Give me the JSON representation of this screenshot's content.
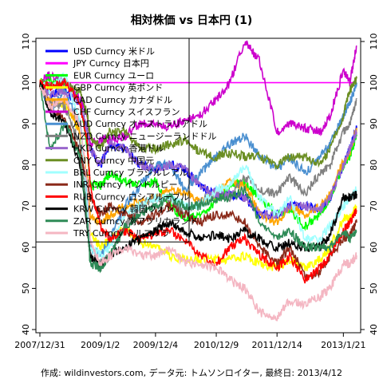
{
  "chart_data": {
    "type": "line",
    "title": "相対株価 vs 日本円 (1)",
    "caption": "作成: wildinvestors.com, データ元: トムソンロイター, 最終日: 2013/4/12",
    "x_ticks": [
      "2007/12/31",
      "2009/1/2",
      "2009/12/4",
      "2010/12/9",
      "2011/12/14",
      "2013/1/21"
    ],
    "ylim": [
      40,
      110
    ],
    "y_ticks": [
      40,
      50,
      60,
      70,
      80,
      90,
      100,
      110
    ],
    "y_ticks_both_sides": true,
    "grid": false,
    "legend_position": "top-left",
    "x": [
      "2007/12/31",
      "2008/3/1",
      "2008/6/1",
      "2008/9/1",
      "2008/10/15",
      "2008/11/1",
      "2009/1/2",
      "2009/3/1",
      "2009/6/1",
      "2009/9/1",
      "2009/12/4",
      "2010/3/1",
      "2010/6/1",
      "2010/9/1",
      "2010/12/9",
      "2011/3/1",
      "2011/6/1",
      "2011/9/1",
      "2011/12/14",
      "2012/3/1",
      "2012/6/1",
      "2012/9/1",
      "2012/11/1",
      "2013/1/21",
      "2013/3/1",
      "2013/4/12"
    ],
    "series": [
      {
        "name": "USD Curncy 米ドル",
        "color": "#0000ff",
        "values": [
          100,
          97,
          98,
          95,
          88,
          84,
          80,
          85,
          84,
          80,
          79,
          80,
          79,
          75,
          73,
          73,
          72,
          68,
          68,
          70,
          70,
          69,
          72,
          80,
          84,
          89
        ]
      },
      {
        "name": "JPY Curncy 日本円",
        "color": "#ff00ff",
        "values": [
          100,
          100,
          100,
          100,
          100,
          100,
          100,
          100,
          100,
          100,
          100,
          100,
          100,
          100,
          100,
          100,
          100,
          100,
          100,
          100,
          100,
          100,
          100,
          100,
          100,
          100
        ]
      },
      {
        "name": "EUR Curncy ユーロ",
        "color": "#00ff00",
        "values": [
          100,
          101,
          100,
          96,
          84,
          75,
          75,
          78,
          76,
          75,
          76,
          70,
          67,
          68,
          71,
          75,
          76,
          72,
          68,
          69,
          65,
          68,
          72,
          80,
          82,
          87
        ]
      },
      {
        "name": "GBP Curncy 英ポンド",
        "color": "#ffff00",
        "values": [
          100,
          95,
          95,
          88,
          75,
          63,
          60,
          62,
          65,
          61,
          60,
          58,
          57,
          57,
          57,
          57,
          58,
          56,
          55,
          57,
          55,
          57,
          60,
          67,
          67,
          70
        ]
      },
      {
        "name": "CAD Curncy カナダドル",
        "color": "#ffa500",
        "values": [
          100,
          95,
          96,
          88,
          77,
          68,
          66,
          68,
          70,
          71,
          72,
          74,
          73,
          71,
          73,
          76,
          75,
          68,
          66,
          70,
          68,
          70,
          73,
          81,
          83,
          89
        ]
      },
      {
        "name": "CHF Curncy スイスフラン",
        "color": "#cc00cc",
        "values": [
          100,
          102,
          100,
          96,
          92,
          85,
          86,
          86,
          87,
          90,
          90,
          89,
          91,
          92,
          96,
          100,
          110,
          105,
          88,
          90,
          89,
          88,
          92,
          103,
          100,
          109
        ]
      },
      {
        "name": "AUD Curncy オーストラリアドル",
        "color": "#4a8fd0",
        "values": [
          100,
          93,
          98,
          90,
          72,
          60,
          58,
          62,
          70,
          75,
          80,
          80,
          74,
          78,
          82,
          85,
          87,
          82,
          79,
          82,
          78,
          82,
          85,
          92,
          95,
          100
        ]
      },
      {
        "name": "NZD Curncy ニュージーランドドル",
        "color": "#808080",
        "values": [
          100,
          95,
          94,
          85,
          68,
          58,
          56,
          58,
          65,
          70,
          72,
          72,
          68,
          71,
          73,
          72,
          77,
          74,
          73,
          77,
          73,
          78,
          80,
          88,
          90,
          96
        ]
      },
      {
        "name": "HKD Curncy 香港ドル",
        "color": "#9966cc",
        "values": [
          100,
          97,
          98,
          95,
          88,
          84,
          80,
          85,
          84,
          80,
          79,
          80,
          79,
          75,
          73,
          73,
          72,
          68,
          68,
          70,
          70,
          69,
          72,
          80,
          84,
          88
        ]
      },
      {
        "name": "CNY Curncy 中国元",
        "color": "#6b8e23",
        "values": [
          100,
          99,
          100,
          98,
          92,
          87,
          84,
          88,
          88,
          84,
          84,
          85,
          86,
          83,
          82,
          83,
          82,
          82,
          80,
          82,
          82,
          80,
          84,
          92,
          98,
          101
        ]
      },
      {
        "name": "BRL Curncy ブラジルレアル",
        "color": "#a0ffff",
        "values": [
          100,
          98,
          102,
          90,
          70,
          60,
          58,
          60,
          68,
          70,
          72,
          72,
          70,
          70,
          74,
          75,
          80,
          72,
          68,
          72,
          62,
          62,
          65,
          70,
          72,
          74
        ]
      },
      {
        "name": "INR Curncy インドルピー",
        "color": "#8b2a1a",
        "values": [
          100,
          94,
          91,
          83,
          76,
          72,
          68,
          70,
          68,
          66,
          68,
          70,
          68,
          66,
          68,
          68,
          66,
          60,
          56,
          60,
          53,
          54,
          58,
          62,
          63,
          66
        ]
      },
      {
        "name": "RUB Curncy ロシアルーブル",
        "color": "#ff0000",
        "values": [
          100,
          99,
          100,
          95,
          85,
          75,
          65,
          62,
          64,
          62,
          63,
          64,
          62,
          58,
          56,
          60,
          62,
          58,
          55,
          58,
          52,
          55,
          58,
          64,
          66,
          69
        ]
      },
      {
        "name": "KRW Curncy 韓国ウォン",
        "color": "#000000",
        "values": [
          100,
          93,
          90,
          80,
          65,
          58,
          55,
          58,
          60,
          62,
          64,
          66,
          64,
          62,
          63,
          62,
          64,
          62,
          60,
          61,
          60,
          60,
          63,
          72,
          72,
          73
        ]
      },
      {
        "name": "ZAR Curncy 南アフリカランド",
        "color": "#2e8b57",
        "values": [
          100,
          84,
          90,
          82,
          66,
          56,
          55,
          58,
          65,
          68,
          70,
          72,
          70,
          70,
          72,
          72,
          74,
          66,
          62,
          64,
          60,
          60,
          60,
          64,
          62,
          64
        ]
      },
      {
        "name": "TRY Curncy トルコリラ",
        "color": "#f4b6c2",
        "values": [
          100,
          94,
          96,
          90,
          75,
          62,
          56,
          58,
          60,
          58,
          58,
          60,
          56,
          56,
          55,
          52,
          50,
          44,
          43,
          47,
          46,
          48,
          50,
          56,
          56,
          58
        ]
      }
    ]
  }
}
